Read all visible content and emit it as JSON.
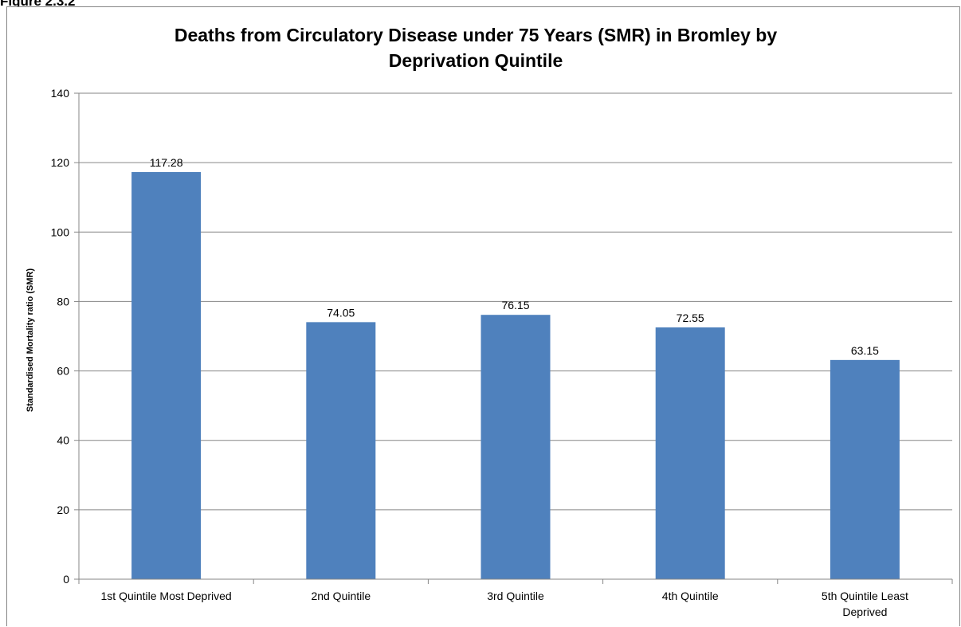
{
  "figure_label": "Figure 2.3.2",
  "chart_data": {
    "type": "bar",
    "title_lines": [
      "Deaths from Circulatory Disease under 75 Years (SMR) in Bromley by",
      "Deprivation Quintile"
    ],
    "xlabel": "",
    "ylabel": "Standardised Mortality ratio (SMR)",
    "categories": [
      [
        "1st Quintile Most Deprived"
      ],
      [
        "2nd Quintile"
      ],
      [
        "3rd Quintile"
      ],
      [
        "4th Quintile"
      ],
      [
        "5th Quintile Least",
        "Deprived"
      ]
    ],
    "values": [
      117.28,
      74.05,
      76.15,
      72.55,
      63.15
    ],
    "data_labels": [
      "117.28",
      "74.05",
      "76.15",
      "72.55",
      "63.15"
    ],
    "ylim": [
      0,
      140
    ],
    "y_ticks": [
      0,
      20,
      40,
      60,
      80,
      100,
      120,
      140
    ],
    "grid": true,
    "legend": "none",
    "colors": {
      "bar": "#4f81bd",
      "gridline": "#868686",
      "axis": "#868686"
    }
  }
}
